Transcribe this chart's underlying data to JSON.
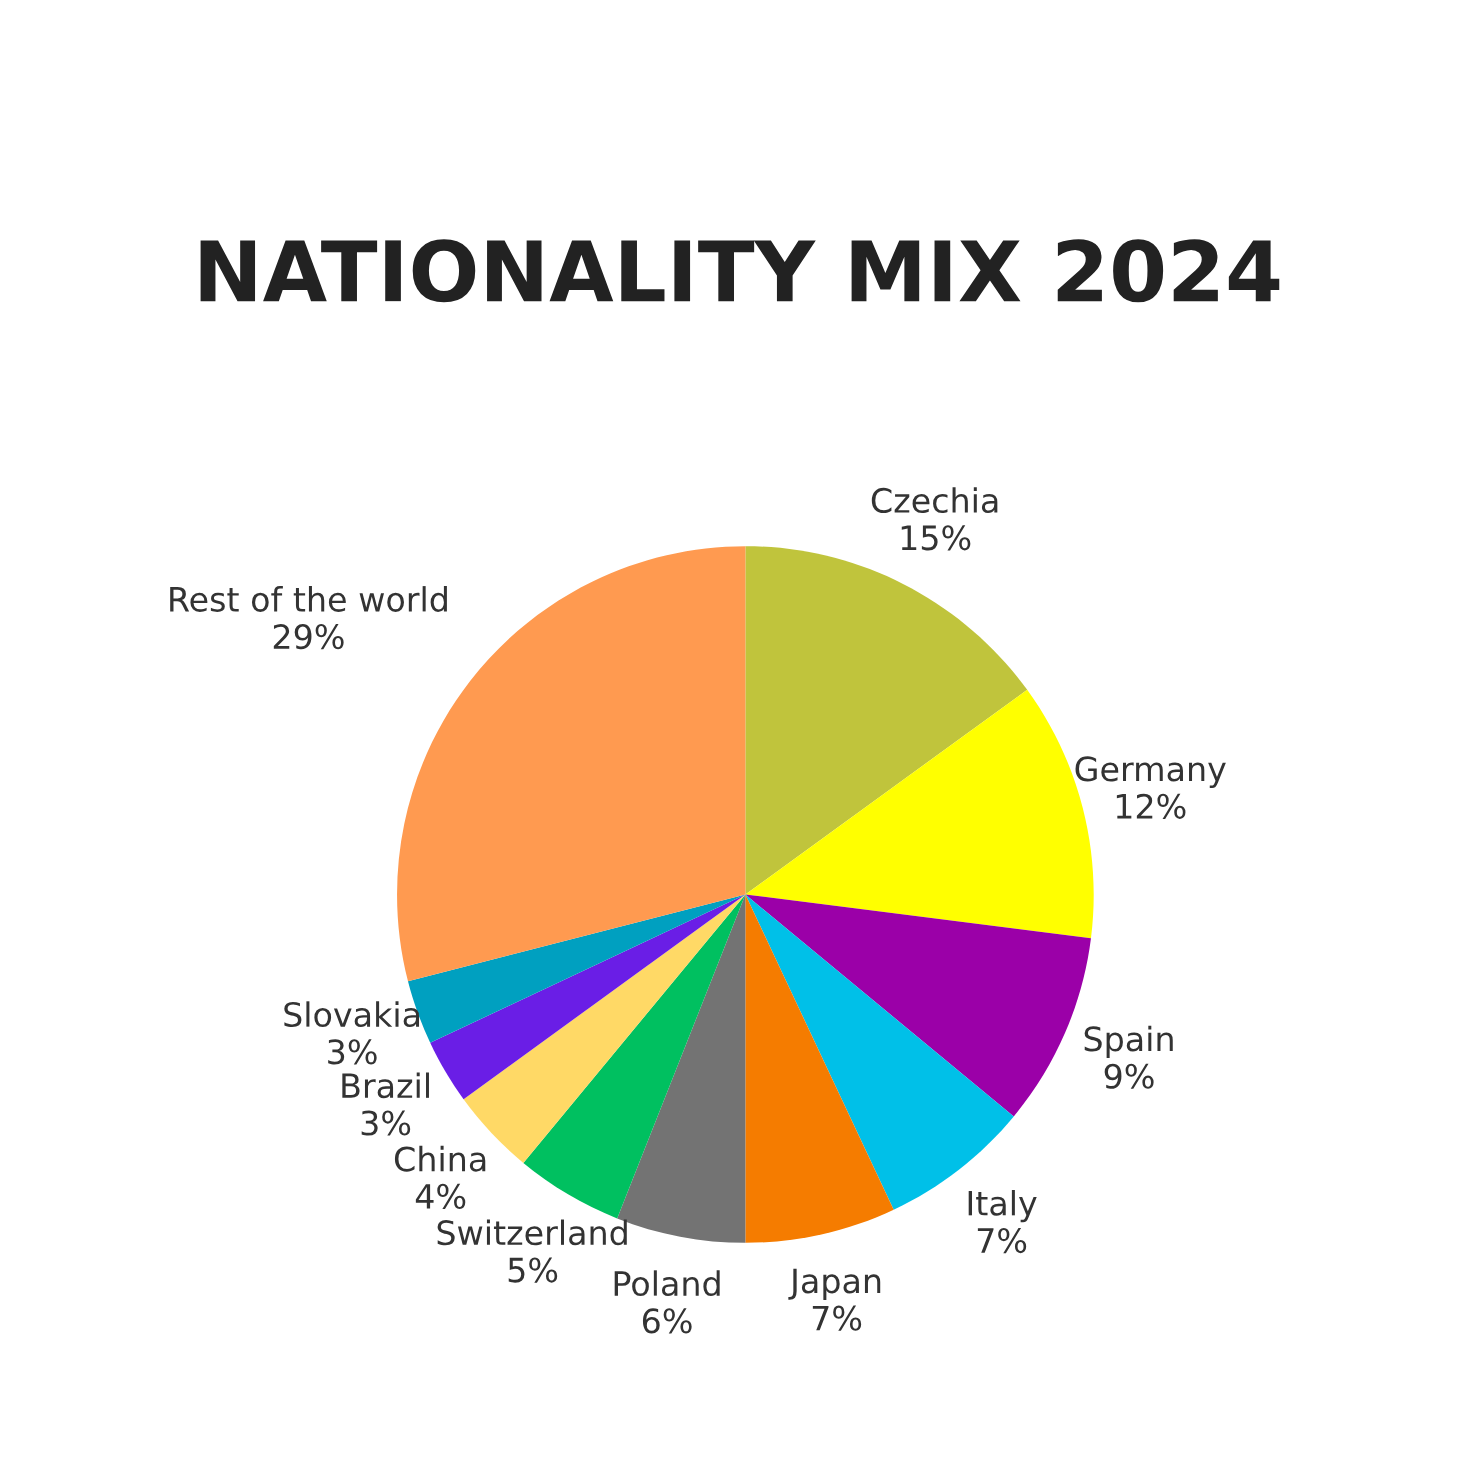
{
  "chart_data": {
    "type": "pie",
    "title": "NATIONALITY MIX 2024",
    "categories": [
      "Czechia",
      "Germany",
      "Spain",
      "Italy",
      "Japan",
      "Poland",
      "Switzerland",
      "China",
      "Brazil",
      "Slovakia",
      "Rest of the world"
    ],
    "values": [
      15,
      12,
      9,
      7,
      7,
      6,
      5,
      4,
      3,
      3,
      29
    ],
    "value_labels": [
      "15%",
      "12%",
      "9%",
      "7%",
      "7%",
      "6%",
      "5%",
      "4%",
      "3%",
      "3%",
      "29%"
    ],
    "colors": [
      "#c0c43c",
      "#ffff00",
      "#9b00a8",
      "#00c0e8",
      "#f57c00",
      "#737373",
      "#00c060",
      "#ffd966",
      "#6a1ee6",
      "#00a0c0",
      "#ff9a50"
    ],
    "legend": false
  }
}
